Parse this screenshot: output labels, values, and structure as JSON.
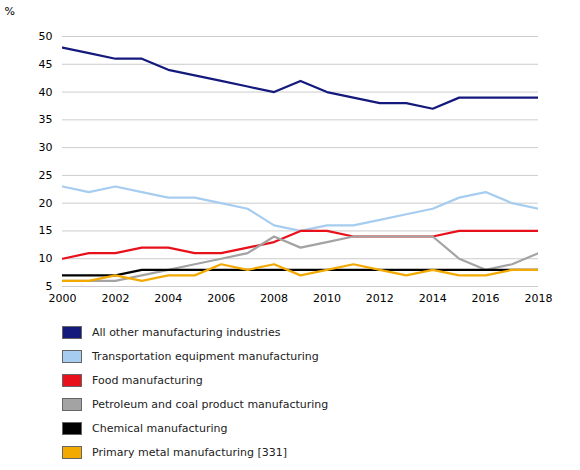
{
  "chart_data": {
    "type": "line",
    "y_label": "%",
    "x": [
      2000,
      2001,
      2002,
      2003,
      2004,
      2005,
      2006,
      2007,
      2008,
      2009,
      2010,
      2011,
      2012,
      2013,
      2014,
      2015,
      2016,
      2017,
      2018
    ],
    "xlim": [
      2000,
      2018
    ],
    "xticks": [
      2000,
      2002,
      2004,
      2006,
      2008,
      2010,
      2012,
      2014,
      2016,
      2018
    ],
    "ylim": [
      5,
      50
    ],
    "yticks": [
      5,
      10,
      15,
      20,
      25,
      30,
      35,
      40,
      45,
      50
    ],
    "grid": true,
    "legend": "bottom",
    "series": [
      {
        "name": "All other manufacturing industries",
        "color": "#141a7c",
        "values": [
          48,
          47,
          46,
          46,
          44,
          43,
          42,
          41,
          40,
          42,
          40,
          39,
          38,
          38,
          37,
          39,
          39,
          39,
          39
        ]
      },
      {
        "name": "Transportation equipment manufacturing",
        "color": "#a6cdf0",
        "values": [
          23,
          22,
          23,
          22,
          21,
          21,
          20,
          19,
          16,
          15,
          16,
          16,
          17,
          18,
          19,
          21,
          22,
          20,
          19
        ]
      },
      {
        "name": "Food manufacturing",
        "color": "#e8101a",
        "values": [
          10,
          11,
          11,
          12,
          12,
          11,
          11,
          12,
          13,
          15,
          15,
          14,
          14,
          14,
          14,
          15,
          15,
          15,
          15
        ]
      },
      {
        "name": "Petroleum and coal product manufacturing",
        "color": "#a3a3a3",
        "values": [
          6,
          6,
          6,
          7,
          8,
          9,
          10,
          11,
          14,
          12,
          13,
          14,
          14,
          14,
          14,
          10,
          8,
          9,
          11
        ]
      },
      {
        "name": "Chemical manufacturing",
        "color": "#000000",
        "values": [
          7,
          7,
          7,
          8,
          8,
          8,
          8,
          8,
          8,
          8,
          8,
          8,
          8,
          8,
          8,
          8,
          8,
          8,
          8
        ]
      },
      {
        "name": "Primary metal manufacturing [331]",
        "color": "#f2a900",
        "values": [
          6,
          6,
          7,
          6,
          7,
          7,
          9,
          8,
          9,
          7,
          8,
          9,
          8,
          7,
          8,
          7,
          7,
          8,
          8
        ]
      }
    ]
  }
}
